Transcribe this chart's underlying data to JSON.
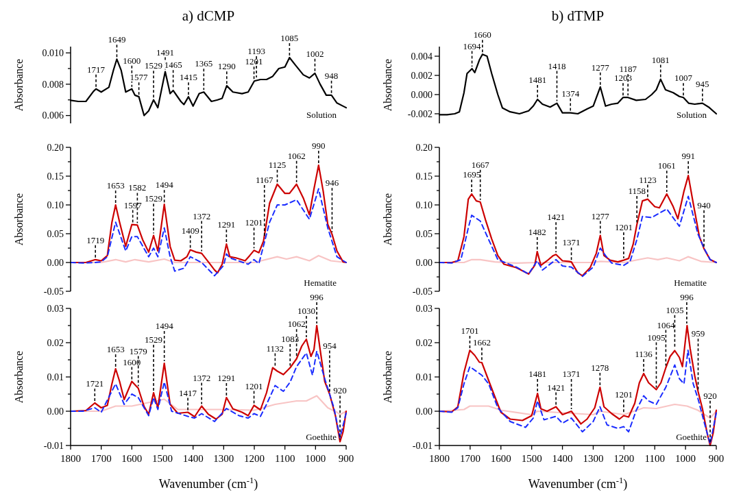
{
  "chart_data": [
    {
      "type": "line",
      "title": "a) dCMP",
      "ylabel": "Absorbance",
      "xlim": [
        1800,
        900
      ],
      "ylim": [
        0.0055,
        0.0104
      ],
      "yticks": [
        {
          "value": 0.006,
          "label": "0.006"
        },
        {
          "value": 0.007,
          "label": null
        },
        {
          "value": 0.008,
          "label": "0.008"
        },
        {
          "value": 0.009,
          "label": null
        },
        {
          "value": 0.01,
          "label": "0.010"
        }
      ],
      "tick_labels": "y",
      "series": [
        {
          "color": "#000000",
          "x": [
            1800,
            1775,
            1750,
            1725,
            1717,
            1700,
            1675,
            1660,
            1649,
            1635,
            1620,
            1600,
            1590,
            1577,
            1560,
            1545,
            1529,
            1515,
            1491,
            1475,
            1465,
            1440,
            1430,
            1415,
            1400,
            1380,
            1365,
            1340,
            1320,
            1305,
            1290,
            1270,
            1240,
            1220,
            1200,
            1180,
            1160,
            1140,
            1120,
            1100,
            1085,
            1065,
            1040,
            1020,
            1002,
            985,
            965,
            948,
            930,
            910,
            900
          ],
          "values": [
            0.00697,
            0.0069,
            0.0069,
            0.00755,
            0.0077,
            0.0075,
            0.0078,
            0.0089,
            0.0096,
            0.0089,
            0.0075,
            0.0077,
            0.0073,
            0.0072,
            0.006,
            0.0063,
            0.007,
            0.0065,
            0.0088,
            0.0074,
            0.0076,
            0.0069,
            0.0067,
            0.0072,
            0.0066,
            0.0074,
            0.0075,
            0.0069,
            0.007,
            0.0071,
            0.0079,
            0.0075,
            0.0074,
            0.0075,
            0.0082,
            0.0083,
            0.0083,
            0.0085,
            0.009,
            0.0091,
            0.0097,
            0.0092,
            0.0086,
            0.0084,
            0.0087,
            0.008,
            0.0073,
            0.0073,
            0.0068,
            0.0066,
            0.0065
          ]
        }
      ],
      "annotations": [
        {
          "text": "1717",
          "x": 1717,
          "y": 0.0077
        },
        {
          "text": "1649",
          "x": 1649,
          "y": 0.0096
        },
        {
          "text": "1600",
          "x": 1600,
          "y": 0.0077
        },
        {
          "text": "1577",
          "x": 1577,
          "y": 0.0072
        },
        {
          "text": "1529",
          "x": 1529,
          "y": 0.007
        },
        {
          "text": "1491",
          "x": 1491,
          "y": 0.0088
        },
        {
          "text": "1465",
          "x": 1465,
          "y": 0.0076
        },
        {
          "text": "1415",
          "x": 1415,
          "y": 0.0072
        },
        {
          "text": "1365",
          "x": 1365,
          "y": 0.0075
        },
        {
          "text": "1290",
          "x": 1290,
          "y": 0.0079
        },
        {
          "text": "1201",
          "x": 1201,
          "y": 0.0082
        },
        {
          "text": "1193",
          "x": 1193,
          "y": 0.0083
        },
        {
          "text": "1085",
          "x": 1085,
          "y": 0.0097
        },
        {
          "text": "1002",
          "x": 1002,
          "y": 0.0087
        },
        {
          "text": "948",
          "x": 948,
          "y": 0.0073
        },
        "Solution"
      ]
    },
    {
      "type": "line",
      "title": "b) dTMP",
      "ylabel": "Absorbance",
      "xlim": [
        1800,
        900
      ],
      "ylim": [
        -0.003,
        0.005
      ],
      "yticks": [
        {
          "value": -0.002,
          "label": "-0.002"
        },
        {
          "value": 0,
          "label": "0.000"
        },
        {
          "value": 0.002,
          "label": "0.002"
        },
        {
          "value": 0.004,
          "label": "0.004"
        }
      ],
      "tick_labels": "y",
      "series": [
        {
          "color": "#000000",
          "x": [
            1800,
            1775,
            1750,
            1735,
            1720,
            1710,
            1694,
            1685,
            1670,
            1660,
            1645,
            1630,
            1610,
            1595,
            1570,
            1540,
            1510,
            1495,
            1481,
            1465,
            1440,
            1418,
            1400,
            1374,
            1350,
            1320,
            1300,
            1277,
            1260,
            1240,
            1220,
            1203,
            1187,
            1160,
            1130,
            1110,
            1095,
            1081,
            1065,
            1040,
            1020,
            1007,
            990,
            970,
            945,
            925,
            900
          ],
          "values": [
            -0.0021,
            -0.0021,
            -0.002,
            -0.0018,
            0.0002,
            0.0022,
            0.0027,
            0.0023,
            0.0036,
            0.0042,
            0.004,
            0.0022,
            0,
            -0.0014,
            -0.0018,
            -0.002,
            -0.0017,
            -0.0012,
            -0.0005,
            -0.001,
            -0.0013,
            -0.0009,
            -0.0019,
            -0.0019,
            -0.002,
            -0.0015,
            -0.0012,
            0.0008,
            -0.0012,
            -0.001,
            -0.0009,
            -0.0003,
            -0.0003,
            -0.0006,
            -0.0005,
            0,
            0.0005,
            0.0016,
            0.0005,
            0.0002,
            -0.0002,
            -0.0003,
            -0.0009,
            -0.001,
            -0.0009,
            -0.0013,
            -0.002
          ]
        }
      ],
      "annotations": [
        {
          "text": "1694",
          "x": 1694,
          "y": 0.0027
        },
        {
          "text": "1660",
          "x": 1660,
          "y": 0.0042
        },
        {
          "text": "1481",
          "x": 1481,
          "y": -0.0005
        },
        {
          "text": "1418",
          "x": 1418,
          "y": -0.0009
        },
        {
          "text": "1374",
          "x": 1374,
          "y": -0.0019
        },
        {
          "text": "1277",
          "x": 1277,
          "y": 0.0008
        },
        {
          "text": "1203",
          "x": 1203,
          "y": -0.0003
        },
        {
          "text": "1187",
          "x": 1187,
          "y": -0.0003
        },
        {
          "text": "1081",
          "x": 1081,
          "y": 0.0016
        },
        {
          "text": "1007",
          "x": 1007,
          "y": -0.0003
        },
        {
          "text": "945",
          "x": 945,
          "y": -0.0009
        },
        "Solution"
      ]
    },
    {
      "type": "line",
      "ylabel": "Absorbance",
      "xlim": [
        1800,
        900
      ],
      "ylim": [
        -0.05,
        0.2
      ],
      "yticks": [
        {
          "value": -0.05,
          "label": "-0.05"
        },
        {
          "value": -0.025,
          "label": null
        },
        {
          "value": 0,
          "label": "0.00"
        },
        {
          "value": 0.025,
          "label": null
        },
        {
          "value": 0.05,
          "label": "0.05"
        },
        {
          "value": 0.075,
          "label": null
        },
        {
          "value": 0.1,
          "label": "0.10"
        },
        {
          "value": 0.125,
          "label": null
        },
        {
          "value": 0.15,
          "label": "0.15"
        },
        {
          "value": 0.175,
          "label": null
        },
        {
          "value": 0.2,
          "label": "0.20"
        }
      ],
      "tick_labels": "y",
      "series": [
        {
          "color": "#f8c4c4",
          "x": [
            1800,
            1700,
            1653,
            1620,
            1590,
            1545,
            1494,
            1460,
            1400,
            1300,
            1200,
            1125,
            1095,
            1062,
            1020,
            990,
            950,
            900
          ],
          "values": [
            0,
            0,
            0.005,
            0.001,
            0.005,
            0.001,
            0.006,
            0,
            0,
            0,
            0,
            0.01,
            0.006,
            0.01,
            0.003,
            0.012,
            0.003,
            0
          ]
        },
        {
          "color": "#cc0000",
          "x": [
            1800,
            1750,
            1719,
            1700,
            1680,
            1665,
            1653,
            1640,
            1620,
            1600,
            1582,
            1565,
            1545,
            1529,
            1515,
            1494,
            1475,
            1460,
            1440,
            1420,
            1409,
            1390,
            1372,
            1350,
            1330,
            1320,
            1305,
            1291,
            1280,
            1260,
            1230,
            1215,
            1201,
            1185,
            1170,
            1150,
            1125,
            1100,
            1085,
            1062,
            1040,
            1020,
            1005,
            990,
            975,
            960,
            946,
            930,
            910,
            900
          ],
          "values": [
            0,
            0,
            0.005,
            0.003,
            0.012,
            0.07,
            0.1,
            0.07,
            0.028,
            0.066,
            0.065,
            0.04,
            0.018,
            0.047,
            0.02,
            0.101,
            0.028,
            0.004,
            0.003,
            0.01,
            0.022,
            0.018,
            0.016,
            0.001,
            -0.013,
            -0.018,
            -0.003,
            0.032,
            0.01,
            0.008,
            0.003,
            0.012,
            0.021,
            0.017,
            0.037,
            0.103,
            0.136,
            0.12,
            0.12,
            0.136,
            0.112,
            0.083,
            0.128,
            0.169,
            0.124,
            0.066,
            0.049,
            0.02,
            0.001,
            0
          ]
        },
        {
          "color": "#1a2cff",
          "line_style": "dashed",
          "x": [
            1800,
            1760,
            1720,
            1700,
            1680,
            1653,
            1620,
            1600,
            1582,
            1545,
            1529,
            1515,
            1494,
            1475,
            1460,
            1430,
            1409,
            1372,
            1330,
            1300,
            1291,
            1280,
            1220,
            1201,
            1185,
            1150,
            1125,
            1100,
            1062,
            1020,
            990,
            960,
            930,
            900
          ],
          "values": [
            0,
            -0.001,
            0,
            0.001,
            0.01,
            0.07,
            0.02,
            0.045,
            0.045,
            0.01,
            0.025,
            0.01,
            0.06,
            0.01,
            -0.015,
            -0.01,
            0.01,
            0,
            -0.023,
            -0.005,
            0.015,
            0.008,
            -0.003,
            0.005,
            -0.002,
            0.07,
            0.1,
            0.1,
            0.109,
            0.075,
            0.128,
            0.06,
            0.01,
            0
          ]
        }
      ],
      "annotations": [
        {
          "text": "1719",
          "x": 1719,
          "y": 0.005
        },
        {
          "text": "1653",
          "x": 1653,
          "y": 0.1
        },
        {
          "text": "1597",
          "x": 1597,
          "y": 0.066
        },
        {
          "text": "1582",
          "x": 1582,
          "y": 0.065
        },
        {
          "text": "1529",
          "x": 1529,
          "y": 0.047
        },
        {
          "text": "1494",
          "x": 1494,
          "y": 0.101
        },
        {
          "text": "1409",
          "x": 1409,
          "y": 0.022
        },
        {
          "text": "1372",
          "x": 1372,
          "y": 0.016
        },
        {
          "text": "1291",
          "x": 1291,
          "y": 0.032
        },
        {
          "text": "1201",
          "x": 1201,
          "y": 0.021
        },
        {
          "text": "1167",
          "x": 1167,
          "y": 0.04
        },
        {
          "text": "1125",
          "x": 1125,
          "y": 0.136
        },
        {
          "text": "1062",
          "x": 1062,
          "y": 0.136
        },
        {
          "text": "990",
          "x": 990,
          "y": 0.169
        },
        {
          "text": "946",
          "x": 946,
          "y": 0.049
        },
        "Hematite"
      ]
    },
    {
      "type": "line",
      "ylabel": "Absorbance",
      "xlim": [
        1800,
        900
      ],
      "ylim": [
        -0.05,
        0.2
      ],
      "yticks": [
        {
          "value": -0.05,
          "label": "-0.05"
        },
        {
          "value": -0.025,
          "label": null
        },
        {
          "value": 0,
          "label": "0.00"
        },
        {
          "value": 0.025,
          "label": null
        },
        {
          "value": 0.05,
          "label": "0.05"
        },
        {
          "value": 0.075,
          "label": null
        },
        {
          "value": 0.1,
          "label": "0.10"
        },
        {
          "value": 0.125,
          "label": null
        },
        {
          "value": 0.15,
          "label": "0.15"
        },
        {
          "value": 0.175,
          "label": null
        },
        {
          "value": 0.2,
          "label": "0.20"
        }
      ],
      "tick_labels": "y",
      "series": [
        {
          "color": "#f8c4c4",
          "x": [
            1800,
            1720,
            1695,
            1667,
            1620,
            1550,
            1482,
            1400,
            1300,
            1277,
            1200,
            1123,
            1090,
            1061,
            1020,
            991,
            950,
            900
          ],
          "values": [
            0,
            0,
            0.005,
            0.005,
            0.001,
            -0.001,
            0,
            0,
            0,
            0.002,
            0,
            0.008,
            0.005,
            0.008,
            0.003,
            0.01,
            0.002,
            0
          ]
        },
        {
          "color": "#cc0000",
          "x": [
            1800,
            1760,
            1740,
            1720,
            1706,
            1695,
            1680,
            1667,
            1650,
            1630,
            1610,
            1590,
            1550,
            1510,
            1490,
            1482,
            1470,
            1450,
            1430,
            1421,
            1400,
            1380,
            1371,
            1350,
            1335,
            1310,
            1290,
            1277,
            1265,
            1245,
            1220,
            1201,
            1185,
            1170,
            1158,
            1140,
            1123,
            1100,
            1085,
            1061,
            1040,
            1025,
            1005,
            991,
            975,
            955,
            940,
            920,
            900
          ],
          "values": [
            0,
            0,
            0.003,
            0.045,
            0.11,
            0.119,
            0.107,
            0.105,
            0.074,
            0.041,
            0.012,
            -0.003,
            -0.009,
            -0.02,
            -0.005,
            0.019,
            -0.005,
            0.003,
            0.012,
            0.014,
            0.003,
            0.002,
            0.001,
            -0.018,
            -0.023,
            -0.009,
            0.016,
            0.047,
            0.012,
            0.004,
            0.001,
            0.004,
            0.007,
            0.032,
            0.066,
            0.107,
            0.11,
            0.097,
            0.095,
            0.119,
            0.097,
            0.076,
            0.124,
            0.151,
            0.103,
            0.045,
            0.024,
            0.005,
            0
          ]
        },
        {
          "color": "#1a2cff",
          "line_style": "dashed",
          "x": [
            1800,
            1760,
            1730,
            1706,
            1695,
            1667,
            1640,
            1610,
            1550,
            1510,
            1482,
            1465,
            1421,
            1400,
            1371,
            1335,
            1300,
            1277,
            1260,
            1240,
            1201,
            1180,
            1158,
            1140,
            1110,
            1061,
            1020,
            991,
            960,
            940,
            920,
            900
          ],
          "values": [
            0,
            -0.001,
            0.005,
            0.06,
            0.082,
            0.072,
            0.04,
            0.005,
            -0.008,
            -0.02,
            0.003,
            -0.013,
            0.005,
            -0.006,
            -0.008,
            -0.024,
            -0.008,
            0.025,
            0.012,
            -0.001,
            -0.005,
            0.002,
            0.04,
            0.08,
            0.078,
            0.093,
            0.063,
            0.115,
            0.05,
            0.025,
            0.005,
            0
          ]
        }
      ],
      "annotations": [
        {
          "text": "1695",
          "x": 1695,
          "y": 0.119
        },
        {
          "text": "1667",
          "x": 1667,
          "y": 0.105
        },
        {
          "text": "1482",
          "x": 1482,
          "y": 0.019
        },
        {
          "text": "1421",
          "x": 1421,
          "y": 0.014
        },
        {
          "text": "1371",
          "x": 1371,
          "y": 0.001
        },
        {
          "text": "1277",
          "x": 1277,
          "y": 0.047
        },
        {
          "text": "1201",
          "x": 1201,
          "y": 0.004
        },
        {
          "text": "1158",
          "x": 1158,
          "y": 0.066
        },
        {
          "text": "1123",
          "x": 1123,
          "y": 0.11
        },
        {
          "text": "1061",
          "x": 1061,
          "y": 0.119
        },
        {
          "text": "991",
          "x": 991,
          "y": 0.151
        },
        {
          "text": "940",
          "x": 940,
          "y": 0.024
        },
        "Hematite"
      ]
    },
    {
      "type": "line",
      "xlabel": "Wavenumber (cm$^{-1}$)",
      "ylabel": "Absorbance",
      "xlim": [
        1800,
        900
      ],
      "xticks": [
        1800,
        1700,
        1600,
        1500,
        1400,
        1300,
        1200,
        1100,
        1000,
        900
      ],
      "ylim": [
        -0.01,
        0.03
      ],
      "yticks": [
        {
          "value": -0.01,
          "label": "-0.01"
        },
        {
          "value": -0.005,
          "label": null
        },
        {
          "value": 0,
          "label": "0.00"
        },
        {
          "value": 0.005,
          "label": null
        },
        {
          "value": 0.01,
          "label": "0.01"
        },
        {
          "value": 0.015,
          "label": null
        },
        {
          "value": 0.02,
          "label": "0.02"
        },
        {
          "value": 0.025,
          "label": null
        },
        {
          "value": 0.03,
          "label": "0.03"
        }
      ],
      "series": [
        {
          "color": "#f8c4c4",
          "x": [
            1800,
            1700,
            1653,
            1600,
            1494,
            1450,
            1300,
            1200,
            1132,
            1062,
            1030,
            996,
            960,
            930,
            920,
            900
          ],
          "values": [
            0,
            0,
            0.0015,
            0.0015,
            0.0035,
            0.0005,
            0.0005,
            0.0003,
            0.002,
            0.003,
            0.003,
            0.0045,
            0.001,
            -0.0003,
            -0.001,
            0
          ]
        },
        {
          "color": "#cc0000",
          "x": [
            1800,
            1750,
            1721,
            1700,
            1680,
            1665,
            1653,
            1640,
            1625,
            1600,
            1579,
            1560,
            1545,
            1529,
            1515,
            1494,
            1475,
            1450,
            1417,
            1395,
            1372,
            1350,
            1325,
            1305,
            1291,
            1270,
            1240,
            1220,
            1201,
            1180,
            1160,
            1140,
            1125,
            1105,
            1083,
            1062,
            1045,
            1030,
            1015,
            1005,
            996,
            985,
            970,
            954,
            935,
            920,
            910,
            900
          ],
          "values": [
            0,
            0.0002,
            0.0024,
            0.001,
            0.0017,
            0.008,
            0.0124,
            0.0087,
            0.0034,
            0.0087,
            0.0067,
            0.0014,
            -0.0009,
            0.0054,
            0.001,
            0.014,
            0.002,
            -0.0006,
            -0.0003,
            -0.0016,
            0.0015,
            -0.0009,
            -0.0023,
            -0.0009,
            0.004,
            0.0007,
            -0.0003,
            -0.0013,
            0.0017,
            0.0004,
            0.0054,
            0.0127,
            0.0117,
            0.0107,
            0.0127,
            0.0153,
            0.019,
            0.021,
            0.016,
            0.018,
            0.025,
            0.018,
            0.0087,
            0.005,
            -0.0013,
            -0.0089,
            -0.006,
            0
          ]
        },
        {
          "color": "#1a2cff",
          "line_style": "dashed",
          "x": [
            1800,
            1760,
            1721,
            1700,
            1653,
            1625,
            1600,
            1579,
            1545,
            1529,
            1515,
            1494,
            1470,
            1417,
            1395,
            1372,
            1330,
            1291,
            1250,
            1220,
            1201,
            1180,
            1160,
            1132,
            1105,
            1083,
            1062,
            1030,
            1010,
            996,
            970,
            940,
            920,
            900
          ],
          "values": [
            0,
            0,
            0.001,
            -0.0003,
            0.008,
            0.002,
            0.005,
            0.004,
            -0.0013,
            0.004,
            0.0005,
            0.0085,
            0,
            -0.0015,
            -0.002,
            -0.0007,
            -0.003,
            0.0008,
            -0.0013,
            -0.002,
            -0.0007,
            -0.0015,
            0.002,
            0.0075,
            0.0058,
            0.0085,
            0.013,
            0.017,
            0.0105,
            0.0175,
            0.0095,
            0.001,
            -0.0077,
            -0.0005
          ]
        }
      ],
      "annotations": [
        {
          "text": "1721",
          "x": 1721,
          "y": 0.0024
        },
        {
          "text": "1653",
          "x": 1653,
          "y": 0.0124
        },
        {
          "text": "1600",
          "x": 1600,
          "y": 0.0087
        },
        {
          "text": "1579",
          "x": 1579,
          "y": 0.0067
        },
        {
          "text": "1529",
          "x": 1529,
          "y": 0.0054
        },
        {
          "text": "1494",
          "x": 1494,
          "y": 0.014
        },
        {
          "text": "1417",
          "x": 1417,
          "y": -0.0003
        },
        {
          "text": "1372",
          "x": 1372,
          "y": 0.0015
        },
        {
          "text": "1291",
          "x": 1291,
          "y": 0.004
        },
        {
          "text": "1201",
          "x": 1201,
          "y": 0.0017
        },
        {
          "text": "1132",
          "x": 1132,
          "y": 0.0127
        },
        {
          "text": "1083",
          "x": 1083,
          "y": 0.0127
        },
        {
          "text": "1062",
          "x": 1062,
          "y": 0.0153
        },
        {
          "text": "1030",
          "x": 1030,
          "y": 0.021
        },
        {
          "text": "996",
          "x": 996,
          "y": 0.025
        },
        {
          "text": "954",
          "x": 954,
          "y": 0.005
        },
        {
          "text": "920",
          "x": 920,
          "y": -0.0089
        },
        "Goethite"
      ]
    },
    {
      "type": "line",
      "xlabel": "Wavenumber (cm$^{-1}$)",
      "ylabel": "Absorbance",
      "xlim": [
        1800,
        900
      ],
      "xticks": [
        1800,
        1700,
        1600,
        1500,
        1400,
        1300,
        1200,
        1100,
        1000,
        900
      ],
      "ylim": [
        -0.01,
        0.03
      ],
      "yticks": [
        {
          "value": -0.01,
          "label": "-0.01"
        },
        {
          "value": -0.005,
          "label": null
        },
        {
          "value": 0,
          "label": "0.00"
        },
        {
          "value": 0.005,
          "label": null
        },
        {
          "value": 0.01,
          "label": "0.01"
        },
        {
          "value": 0.015,
          "label": null
        },
        {
          "value": 0.02,
          "label": "0.02"
        },
        {
          "value": 0.025,
          "label": null
        },
        {
          "value": 0.03,
          "label": "0.03"
        }
      ],
      "series": [
        {
          "color": "#f8c4c4",
          "x": [
            1800,
            1720,
            1701,
            1640,
            1600,
            1500,
            1481,
            1300,
            1278,
            1200,
            1136,
            1095,
            1035,
            995,
            960,
            920,
            900
          ],
          "values": [
            0,
            0.0005,
            0.0015,
            0.0015,
            0.0003,
            -0.001,
            0,
            -0.001,
            0,
            -0.001,
            0.001,
            0.0008,
            0.002,
            0.0015,
            0.0003,
            -0.002,
            0
          ]
        },
        {
          "color": "#cc0000",
          "x": [
            1800,
            1760,
            1740,
            1720,
            1701,
            1685,
            1670,
            1662,
            1640,
            1620,
            1600,
            1570,
            1530,
            1500,
            1481,
            1470,
            1450,
            1421,
            1400,
            1371,
            1340,
            1320,
            1295,
            1278,
            1265,
            1240,
            1215,
            1201,
            1185,
            1165,
            1150,
            1136,
            1120,
            1095,
            1080,
            1064,
            1050,
            1035,
            1020,
            1010,
            995,
            985,
            970,
            959,
            945,
            930,
            920,
            910,
            900
          ],
          "values": [
            0,
            -0.0002,
            0.0013,
            0.0113,
            0.0178,
            0.0163,
            0.0143,
            0.0142,
            0.009,
            0.0043,
            -0.0003,
            -0.0023,
            -0.0027,
            -0.0013,
            0.0052,
            0.0007,
            0,
            0.0013,
            -0.001,
            0,
            -0.0037,
            -0.0023,
            0.001,
            0.007,
            0.0013,
            -0.0007,
            -0.0023,
            -0.0013,
            -0.0017,
            0.0023,
            0.0083,
            0.011,
            0.0083,
            0.0063,
            0.0083,
            0.0127,
            0.016,
            0.0177,
            0.0157,
            0.013,
            0.025,
            0.0183,
            0.0103,
            0.0057,
            0.0007,
            -0.0063,
            -0.01,
            -0.0063,
            0.0003
          ]
        },
        {
          "color": "#1a2cff",
          "line_style": "dashed",
          "x": [
            1800,
            1760,
            1740,
            1720,
            1701,
            1662,
            1640,
            1610,
            1570,
            1520,
            1495,
            1481,
            1460,
            1421,
            1400,
            1371,
            1335,
            1300,
            1278,
            1255,
            1220,
            1201,
            1185,
            1160,
            1136,
            1120,
            1095,
            1064,
            1035,
            1020,
            1005,
            992,
            975,
            959,
            940,
            920,
            900
          ],
          "values": [
            0,
            -0.0003,
            0.001,
            0.008,
            0.013,
            0.0105,
            0.008,
            0.001,
            -0.003,
            -0.0047,
            -0.002,
            0.003,
            -0.0025,
            -0.0015,
            -0.0035,
            -0.002,
            -0.006,
            -0.003,
            0.0013,
            -0.004,
            -0.005,
            -0.0045,
            -0.006,
            0.0003,
            0.0045,
            0.003,
            0.002,
            0.007,
            0.0135,
            0.0095,
            0.008,
            0.0178,
            0.008,
            0.0035,
            -0.003,
            -0.0095,
            -0.0005
          ]
        }
      ],
      "annotations": [
        {
          "text": "1701",
          "x": 1701,
          "y": 0.0178
        },
        {
          "text": "1662",
          "x": 1662,
          "y": 0.0142
        },
        {
          "text": "1481",
          "x": 1481,
          "y": 0.0052
        },
        {
          "text": "1421",
          "x": 1421,
          "y": 0.0013
        },
        {
          "text": "1371",
          "x": 1371,
          "y": 0
        },
        {
          "text": "1278",
          "x": 1278,
          "y": 0.007
        },
        {
          "text": "1201",
          "x": 1201,
          "y": -0.0013
        },
        {
          "text": "1136",
          "x": 1136,
          "y": 0.011
        },
        {
          "text": "1095",
          "x": 1095,
          "y": 0.0063
        },
        {
          "text": "1064",
          "x": 1064,
          "y": 0.0127
        },
        {
          "text": "1035",
          "x": 1035,
          "y": 0.0177
        },
        {
          "text": "996",
          "x": 996,
          "y": 0.025
        },
        {
          "text": "959",
          "x": 959,
          "y": 0.0057
        },
        {
          "text": "920",
          "x": 920,
          "y": -0.01
        },
        "Goethite"
      ]
    }
  ]
}
